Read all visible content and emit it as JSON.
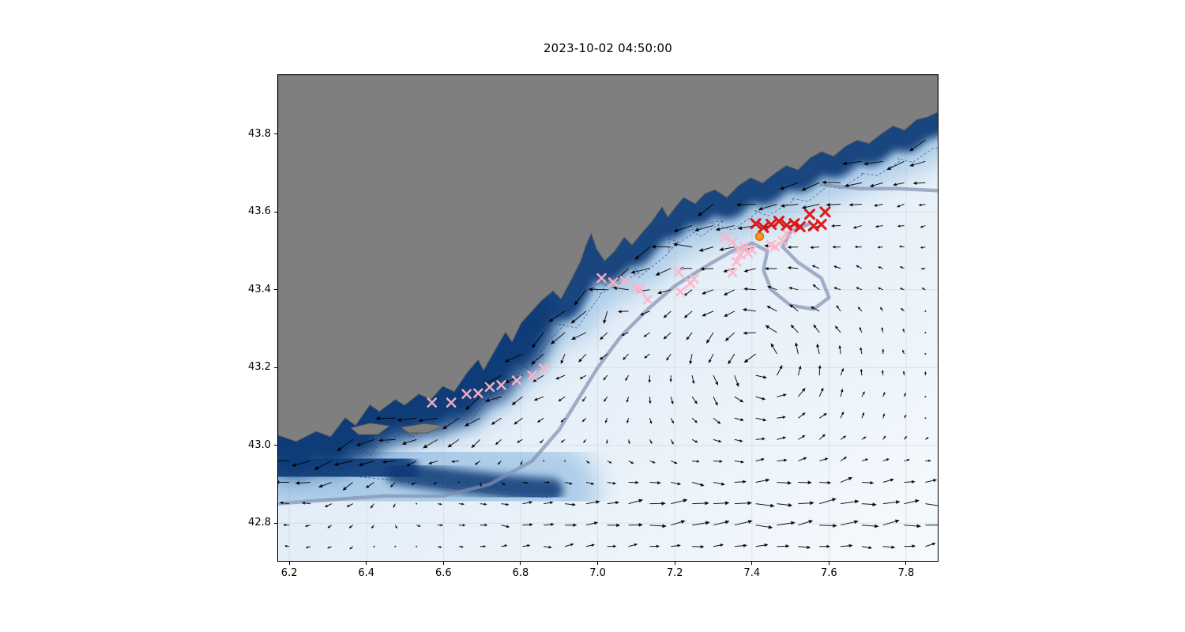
{
  "chart_data": {
    "type": "scatter",
    "subtype": "geo-map-with-quiver",
    "title": "2023-10-02 04:50:00",
    "xlim": [
      6.171,
      7.882
    ],
    "ylim": [
      42.703,
      43.952
    ],
    "x_ticks": [
      6.2,
      6.4,
      6.6,
      6.8,
      7.0,
      7.2,
      7.4,
      7.6,
      7.8
    ],
    "x_tick_labels": [
      "6.2",
      "6.4",
      "6.6",
      "6.8",
      "7.0",
      "7.2",
      "7.4",
      "7.6",
      "7.8"
    ],
    "y_ticks": [
      42.8,
      43.0,
      43.2,
      43.4,
      43.6,
      43.8
    ],
    "y_tick_labels": [
      "42.8",
      "43.0",
      "43.2",
      "43.4",
      "43.6",
      "43.8"
    ],
    "grid": true,
    "legend": "none",
    "colors": {
      "land": "#7f7f7f",
      "land_edge": "#5a5a5a",
      "ocean_light": "#f6fafd",
      "ocean_mid": "#c3d8eb",
      "coastal_band_dark": "#0f3a77",
      "coastal_band_mid": "#74a9d8",
      "contour_dashed": "#1d3f72",
      "contour_thick": "#8290b2",
      "arrow": "#000000",
      "marker_pink": "#ffb3c6",
      "marker_red": "#dd1111",
      "marker_orange": "#ff9021",
      "grid_line": "#c8c8c8"
    },
    "coastline": [
      [
        6.171,
        43.026
      ],
      [
        6.218,
        43.01
      ],
      [
        6.27,
        43.036
      ],
      [
        6.307,
        43.022
      ],
      [
        6.345,
        43.071
      ],
      [
        6.372,
        43.051
      ],
      [
        6.409,
        43.104
      ],
      [
        6.434,
        43.087
      ],
      [
        6.475,
        43.118
      ],
      [
        6.499,
        43.103
      ],
      [
        6.536,
        43.132
      ],
      [
        6.567,
        43.118
      ],
      [
        6.598,
        43.152
      ],
      [
        6.628,
        43.138
      ],
      [
        6.663,
        43.189
      ],
      [
        6.69,
        43.22
      ],
      [
        6.704,
        43.193
      ],
      [
        6.731,
        43.24
      ],
      [
        6.761,
        43.291
      ],
      [
        6.778,
        43.266
      ],
      [
        6.802,
        43.315
      ],
      [
        6.827,
        43.342
      ],
      [
        6.854,
        43.372
      ],
      [
        6.884,
        43.397
      ],
      [
        6.905,
        43.376
      ],
      [
        6.93,
        43.423
      ],
      [
        6.956,
        43.474
      ],
      [
        6.97,
        43.515
      ],
      [
        6.983,
        43.545
      ],
      [
        6.997,
        43.505
      ],
      [
        7.018,
        43.474
      ],
      [
        7.044,
        43.499
      ],
      [
        7.069,
        43.535
      ],
      [
        7.089,
        43.515
      ],
      [
        7.114,
        43.545
      ],
      [
        7.141,
        43.576
      ],
      [
        7.167,
        43.613
      ],
      [
        7.182,
        43.586
      ],
      [
        7.202,
        43.613
      ],
      [
        7.223,
        43.637
      ],
      [
        7.253,
        43.621
      ],
      [
        7.278,
        43.647
      ],
      [
        7.304,
        43.657
      ],
      [
        7.335,
        43.637
      ],
      [
        7.366,
        43.668
      ],
      [
        7.397,
        43.688
      ],
      [
        7.428,
        43.674
      ],
      [
        7.458,
        43.698
      ],
      [
        7.489,
        43.719
      ],
      [
        7.52,
        43.708
      ],
      [
        7.551,
        43.739
      ],
      [
        7.581,
        43.755
      ],
      [
        7.612,
        43.743
      ],
      [
        7.643,
        43.769
      ],
      [
        7.673,
        43.784
      ],
      [
        7.704,
        43.776
      ],
      [
        7.735,
        43.8
      ],
      [
        7.766,
        43.821
      ],
      [
        7.796,
        43.81
      ],
      [
        7.827,
        43.837
      ],
      [
        7.858,
        43.845
      ],
      [
        7.882,
        43.857
      ]
    ],
    "islands": [
      [
        [
          6.36,
          43.045
        ],
        [
          6.41,
          43.057
        ],
        [
          6.46,
          43.05
        ],
        [
          6.43,
          43.028
        ],
        [
          6.38,
          43.028
        ]
      ],
      [
        [
          6.49,
          43.046
        ],
        [
          6.55,
          43.056
        ],
        [
          6.6,
          43.05
        ],
        [
          6.56,
          43.032
        ],
        [
          6.51,
          43.032
        ]
      ]
    ],
    "shelf_band_west": [
      [
        6.171,
        42.955
      ],
      [
        6.32,
        42.945
      ],
      [
        6.48,
        42.93
      ],
      [
        6.62,
        42.91
      ],
      [
        6.78,
        42.892
      ],
      [
        6.88,
        42.885
      ]
    ],
    "thick_contours": [
      [
        [
          6.171,
          42.85
        ],
        [
          6.3,
          42.86
        ],
        [
          6.45,
          42.87
        ],
        [
          6.6,
          42.87
        ],
        [
          6.72,
          42.9
        ],
        [
          6.83,
          42.96
        ],
        [
          6.9,
          43.04
        ],
        [
          6.95,
          43.12
        ],
        [
          7.0,
          43.2
        ],
        [
          7.06,
          43.28
        ],
        [
          7.13,
          43.35
        ],
        [
          7.2,
          43.41
        ],
        [
          7.28,
          43.46
        ],
        [
          7.35,
          43.5
        ],
        [
          7.4,
          43.52
        ],
        [
          7.44,
          43.5
        ],
        [
          7.43,
          43.45
        ],
        [
          7.45,
          43.4
        ],
        [
          7.5,
          43.36
        ],
        [
          7.56,
          43.35
        ],
        [
          7.6,
          43.38
        ],
        [
          7.58,
          43.43
        ],
        [
          7.52,
          43.47
        ],
        [
          7.48,
          43.51
        ],
        [
          7.5,
          43.55
        ],
        [
          7.55,
          43.57
        ]
      ],
      [
        [
          7.58,
          43.67
        ],
        [
          7.68,
          43.66
        ],
        [
          7.78,
          43.66
        ],
        [
          7.88,
          43.655
        ]
      ]
    ],
    "markers": {
      "pink_x": [
        [
          6.57,
          43.11
        ],
        [
          6.62,
          43.11
        ],
        [
          6.66,
          43.132
        ],
        [
          6.69,
          43.134
        ],
        [
          6.72,
          43.15
        ],
        [
          6.75,
          43.155
        ],
        [
          6.79,
          43.167
        ],
        [
          6.83,
          43.18
        ],
        [
          6.86,
          43.198
        ],
        [
          7.01,
          43.43
        ],
        [
          7.04,
          43.419
        ],
        [
          7.07,
          43.423
        ],
        [
          7.1,
          43.405
        ],
        [
          7.11,
          43.4
        ],
        [
          7.13,
          43.375
        ],
        [
          7.21,
          43.445
        ],
        [
          7.215,
          43.395
        ],
        [
          7.24,
          43.417
        ],
        [
          7.25,
          43.428
        ],
        [
          7.33,
          43.535
        ],
        [
          7.35,
          43.522
        ],
        [
          7.365,
          43.505
        ],
        [
          7.37,
          43.49
        ],
        [
          7.38,
          43.511
        ],
        [
          7.39,
          43.494
        ],
        [
          7.4,
          43.503
        ],
        [
          7.35,
          43.444
        ],
        [
          7.36,
          43.472
        ],
        [
          7.45,
          43.515
        ],
        [
          7.46,
          43.511
        ],
        [
          7.48,
          43.525
        ],
        [
          7.49,
          43.545
        ],
        [
          7.5,
          43.556
        ]
      ],
      "red_x": [
        [
          7.41,
          43.57
        ],
        [
          7.43,
          43.56
        ],
        [
          7.45,
          43.568
        ],
        [
          7.47,
          43.576
        ],
        [
          7.49,
          43.566
        ],
        [
          7.51,
          43.57
        ],
        [
          7.525,
          43.562
        ],
        [
          7.55,
          43.594
        ],
        [
          7.56,
          43.564
        ],
        [
          7.58,
          43.568
        ],
        [
          7.59,
          43.6
        ]
      ],
      "orange_dot": [
        7.42,
        43.537
      ]
    },
    "quiver": {
      "x_start": 6.2,
      "x_end": 7.86,
      "y_start": 42.74,
      "y_end": 43.9,
      "step": 0.055,
      "scale": 24,
      "min_len": 4,
      "max_len": 25,
      "speed_dot_threshold": 0.05,
      "jet": {
        "width": 0.12,
        "far_width": 0.3,
        "strength": 0.9,
        "far_strength": 0.28
      },
      "east_flow": {
        "y_center": 42.82,
        "y_width": 0.11,
        "strength": 0.75,
        "x_onset": 6.75,
        "x_onset_width": 0.18
      },
      "eddy": {
        "x": 7.42,
        "y": 43.22,
        "radius": 0.28,
        "strength": 0.5
      },
      "noise_deg": 14
    }
  }
}
